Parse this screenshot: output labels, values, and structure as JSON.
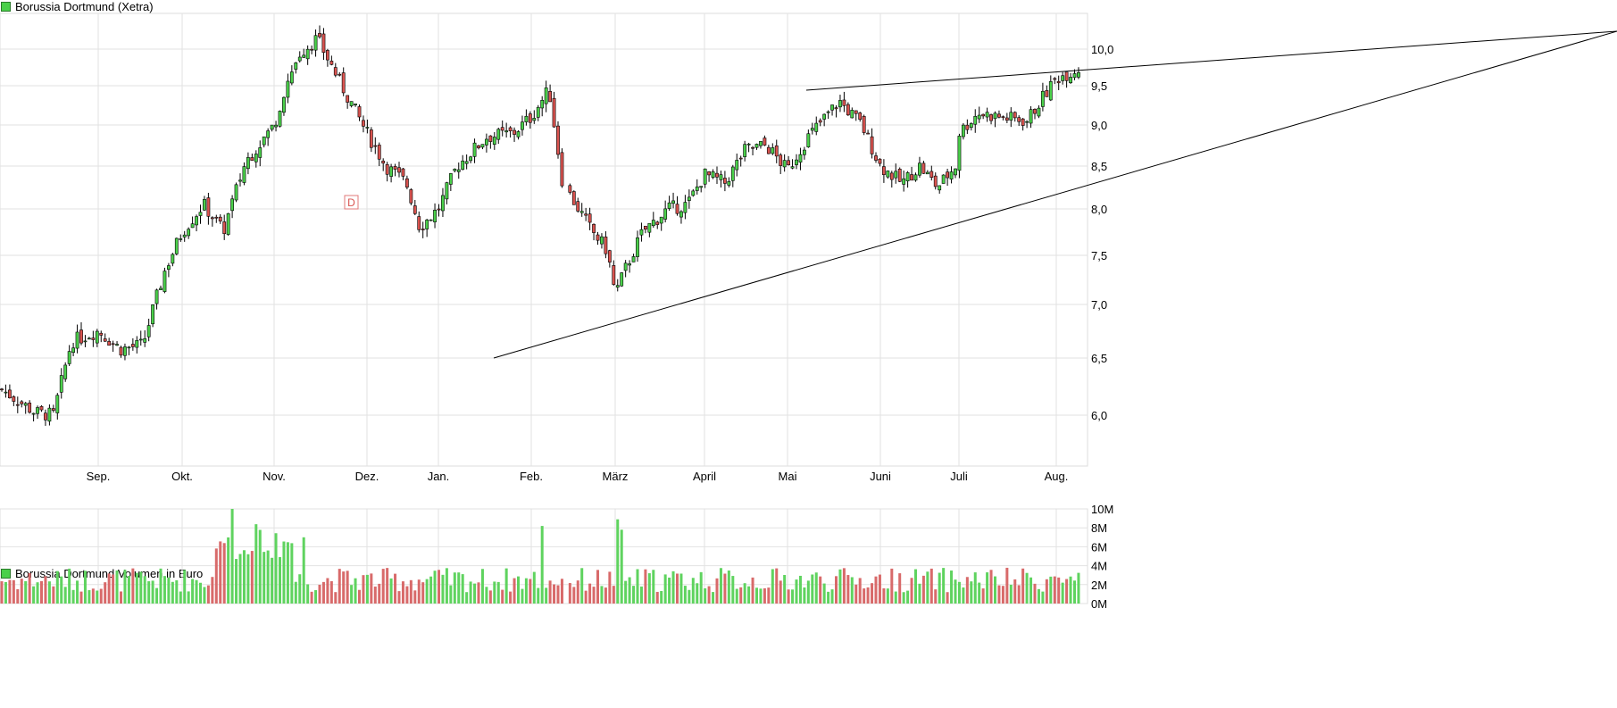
{
  "chart_data": [
    {
      "type": "candlestick",
      "title": "Borussia Dortmund (Xetra)",
      "ylim": [
        5.45,
        10.45
      ],
      "y_ticks": [
        "10,0",
        "9,5",
        "9,0",
        "8,5",
        "8,0",
        "7,5",
        "7,0",
        "6,5",
        "6,0"
      ],
      "y_tick_values": [
        10.0,
        9.5,
        9.0,
        8.5,
        8.0,
        7.5,
        7.0,
        6.5,
        6.0
      ],
      "x_months": [
        "Sep.",
        "Okt.",
        "Nov.",
        "Dez.",
        "Jan.",
        "Feb.",
        "März",
        "April",
        "Mai",
        "Juni",
        "Juli",
        "Aug."
      ],
      "close_series": [
        {
          "date": "Aug 01",
          "close": 6.22
        },
        {
          "date": "Aug 15",
          "close": 6.02
        },
        {
          "date": "Aug 20",
          "close": 6.0
        },
        {
          "date": "Aug 26",
          "close": 6.65
        },
        {
          "date": "Sep 01",
          "close": 6.75
        },
        {
          "date": "Sep 08",
          "close": 6.58
        },
        {
          "date": "Sep 15",
          "close": 6.62
        },
        {
          "date": "Sep 22",
          "close": 7.35
        },
        {
          "date": "Sep 29",
          "close": 7.75
        },
        {
          "date": "Okt 06",
          "close": 8.05
        },
        {
          "date": "Okt 13",
          "close": 7.75
        },
        {
          "date": "Okt 20",
          "close": 8.55
        },
        {
          "date": "Okt 27",
          "close": 9.0
        },
        {
          "date": "Nov 03",
          "close": 9.5
        },
        {
          "date": "Nov 10",
          "close": 9.95
        },
        {
          "date": "Nov 14",
          "close": 10.15
        },
        {
          "date": "Nov 17",
          "close": 9.45
        },
        {
          "date": "Nov 24",
          "close": 8.9
        },
        {
          "date": "Dez 01",
          "close": 8.5
        },
        {
          "date": "Dez 08",
          "close": 8.3
        },
        {
          "date": "Dez 15",
          "close": 7.8
        },
        {
          "date": "Dez 22",
          "close": 8.0
        },
        {
          "date": "Jan 02",
          "close": 8.5
        },
        {
          "date": "Jan 09",
          "close": 8.85
        },
        {
          "date": "Jan 20",
          "close": 8.9
        },
        {
          "date": "Jan 27",
          "close": 9.1
        },
        {
          "date": "Feb 02",
          "close": 9.45
        },
        {
          "date": "Feb 09",
          "close": 8.9
        },
        {
          "date": "Feb 12",
          "close": 8.3
        },
        {
          "date": "Feb 16",
          "close": 7.8
        },
        {
          "date": "Feb 23",
          "close": 7.55
        },
        {
          "date": "März 02",
          "close": 7.1
        },
        {
          "date": "März 09",
          "close": 7.35
        },
        {
          "date": "März 16",
          "close": 7.75
        },
        {
          "date": "März 23",
          "close": 8.0
        },
        {
          "date": "März 30",
          "close": 8.05
        },
        {
          "date": "Apr 06",
          "close": 8.4
        },
        {
          "date": "Apr 13",
          "close": 8.3
        },
        {
          "date": "Apr 20",
          "close": 8.7
        },
        {
          "date": "Apr 27",
          "close": 8.75
        },
        {
          "date": "Mai 04",
          "close": 8.45
        },
        {
          "date": "Mai 11",
          "close": 8.85
        },
        {
          "date": "Mai 18",
          "close": 9.3
        },
        {
          "date": "Mai 25",
          "close": 9.0
        },
        {
          "date": "Jun 01",
          "close": 8.5
        },
        {
          "date": "Jun 08",
          "close": 8.3
        },
        {
          "date": "Jun 15",
          "close": 8.5
        },
        {
          "date": "Jun 22",
          "close": 8.25
        },
        {
          "date": "Jun 29",
          "close": 8.5
        },
        {
          "date": "Jul 06",
          "close": 8.9
        },
        {
          "date": "Jul 13",
          "close": 9.15
        },
        {
          "date": "Jul 20",
          "close": 9.1
        },
        {
          "date": "Jul 27",
          "close": 9.05
        },
        {
          "date": "Aug 03",
          "close": 9.6
        },
        {
          "date": "Aug 06",
          "close": 9.75
        }
      ],
      "trendlines": [
        {
          "name": "upper",
          "from": {
            "date": "Mai 18",
            "value": 9.45
          },
          "to": {
            "date": "Aug 06",
            "value": 9.85
          }
        },
        {
          "name": "lower",
          "from": {
            "date": "Jan 20",
            "value": 6.5
          },
          "to": {
            "date": "Aug 06",
            "value": 9.0
          }
        }
      ],
      "marker": {
        "label": "D",
        "date": "Nov 27"
      },
      "grid": true
    },
    {
      "type": "bar",
      "title": "Borussia Dortmund Volumen in Euro",
      "ylim": [
        0,
        10
      ],
      "y_ticks": [
        "10M",
        "8M",
        "6M",
        "4M",
        "2M",
        "0M"
      ],
      "y_tick_values": [
        10,
        8,
        6,
        4,
        2,
        0
      ],
      "unit": "M EUR",
      "colors": {
        "up": "#5fd35f",
        "down": "#d86a6a"
      },
      "grid": true
    }
  ]
}
